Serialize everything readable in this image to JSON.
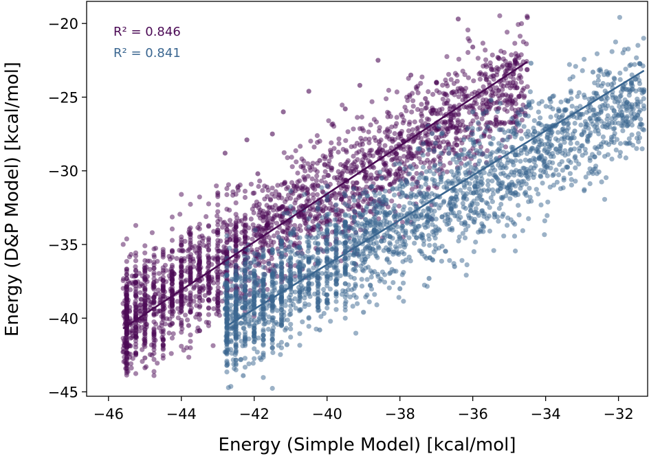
{
  "chart_data": {
    "type": "scatter",
    "title": "",
    "xlabel": "Energy (Simple Model) [kcal/mol]",
    "ylabel": "Energy (D&P Model) [kcal/mol]",
    "xlim": [
      -46.6,
      -31.2
    ],
    "ylim": [
      -45.3,
      -18.5
    ],
    "x_ticks": [
      -46,
      -44,
      -42,
      -40,
      -38,
      -36,
      -34,
      -32
    ],
    "y_ticks": [
      -45,
      -40,
      -35,
      -30,
      -25,
      -20
    ],
    "x_tick_labels": [
      "−46",
      "−44",
      "−42",
      "−40",
      "−38",
      "−36",
      "−34",
      "−32"
    ],
    "y_tick_labels": [
      "−45",
      "−40",
      "−35",
      "−30",
      "−25",
      "−20"
    ],
    "grid": false,
    "series": [
      {
        "color": "#4b0a55",
        "r2_label": "R² = 0.846",
        "r2_value": "0.846",
        "fit_line": {
          "x": [
            -45.6,
            -34.5
          ],
          "y": [
            -40.7,
            -22.6
          ]
        },
        "cloud": {
          "x_range": [
            -45.6,
            -34.5
          ],
          "y_center_at_x_min": -40.3,
          "y_center_at_x_max": -23.5,
          "spread": 1.9
        },
        "points": [
          {
            "x": -45.6,
            "y": -42.3
          },
          {
            "x": -45.0,
            "y": -42.7
          },
          {
            "x": -44.9,
            "y": -38.8
          },
          {
            "x": -44.5,
            "y": -41.5
          },
          {
            "x": -44.2,
            "y": -37.0
          },
          {
            "x": -43.8,
            "y": -40.5
          },
          {
            "x": -43.5,
            "y": -35.8
          },
          {
            "x": -43.0,
            "y": -31.5
          },
          {
            "x": -42.8,
            "y": -28.8
          },
          {
            "x": -42.2,
            "y": -27.9
          },
          {
            "x": -41.9,
            "y": -30.2
          },
          {
            "x": -41.5,
            "y": -27.5
          },
          {
            "x": -41.2,
            "y": -26.0
          },
          {
            "x": -40.5,
            "y": -24.6
          },
          {
            "x": -40.2,
            "y": -29.3
          },
          {
            "x": -39.5,
            "y": -25.8
          },
          {
            "x": -39.1,
            "y": -24.2
          },
          {
            "x": -38.6,
            "y": -22.5
          },
          {
            "x": -38.2,
            "y": -28.0
          },
          {
            "x": -37.7,
            "y": -23.5
          },
          {
            "x": -37.3,
            "y": -25.1
          },
          {
            "x": -37.0,
            "y": -24.0
          },
          {
            "x": -36.6,
            "y": -26.5
          },
          {
            "x": -36.4,
            "y": -19.7
          },
          {
            "x": -36.0,
            "y": -21.6
          },
          {
            "x": -35.7,
            "y": -24.6
          },
          {
            "x": -35.3,
            "y": -23.1
          },
          {
            "x": -34.9,
            "y": -25.3
          },
          {
            "x": -34.5,
            "y": -19.6
          },
          {
            "x": -41.0,
            "y": -36.5
          },
          {
            "x": -40.0,
            "y": -32.0
          },
          {
            "x": -39.0,
            "y": -30.0
          },
          {
            "x": -38.0,
            "y": -27.5
          },
          {
            "x": -42.5,
            "y": -38.0
          },
          {
            "x": -43.2,
            "y": -37.5
          },
          {
            "x": -44.0,
            "y": -39.5
          }
        ]
      },
      {
        "color": "#3a6690",
        "r2_label": "R² = 0.841",
        "r2_value": "0.841",
        "fit_line": {
          "x": [
            -42.8,
            -31.3
          ],
          "y": [
            -40.6,
            -23.2
          ]
        },
        "cloud": {
          "x_range": [
            -42.8,
            -31.3
          ],
          "y_center_at_x_min": -40.0,
          "y_center_at_x_max": -25.0,
          "spread": 1.9
        },
        "points": [
          {
            "x": -42.3,
            "y": -43.9
          },
          {
            "x": -42.8,
            "y": -42.3
          },
          {
            "x": -41.5,
            "y": -42.0
          },
          {
            "x": -41.1,
            "y": -41.8
          },
          {
            "x": -40.2,
            "y": -40.8
          },
          {
            "x": -39.0,
            "y": -39.6
          },
          {
            "x": -38.0,
            "y": -38.0
          },
          {
            "x": -37.2,
            "y": -37.3
          },
          {
            "x": -36.5,
            "y": -36.5
          },
          {
            "x": -35.7,
            "y": -33.8
          },
          {
            "x": -35.0,
            "y": -31.0
          },
          {
            "x": -34.4,
            "y": -22.7
          },
          {
            "x": -34.2,
            "y": -28.4
          },
          {
            "x": -33.6,
            "y": -28.5
          },
          {
            "x": -33.2,
            "y": -27.3
          },
          {
            "x": -32.9,
            "y": -27.0
          },
          {
            "x": -32.7,
            "y": -23.3
          },
          {
            "x": -32.0,
            "y": -26.2
          },
          {
            "x": -31.3,
            "y": -24.5
          },
          {
            "x": -36.0,
            "y": -26.0
          },
          {
            "x": -35.5,
            "y": -25.2
          },
          {
            "x": -37.5,
            "y": -28.5
          },
          {
            "x": -38.5,
            "y": -30.5
          },
          {
            "x": -39.5,
            "y": -33.5
          }
        ]
      }
    ]
  }
}
